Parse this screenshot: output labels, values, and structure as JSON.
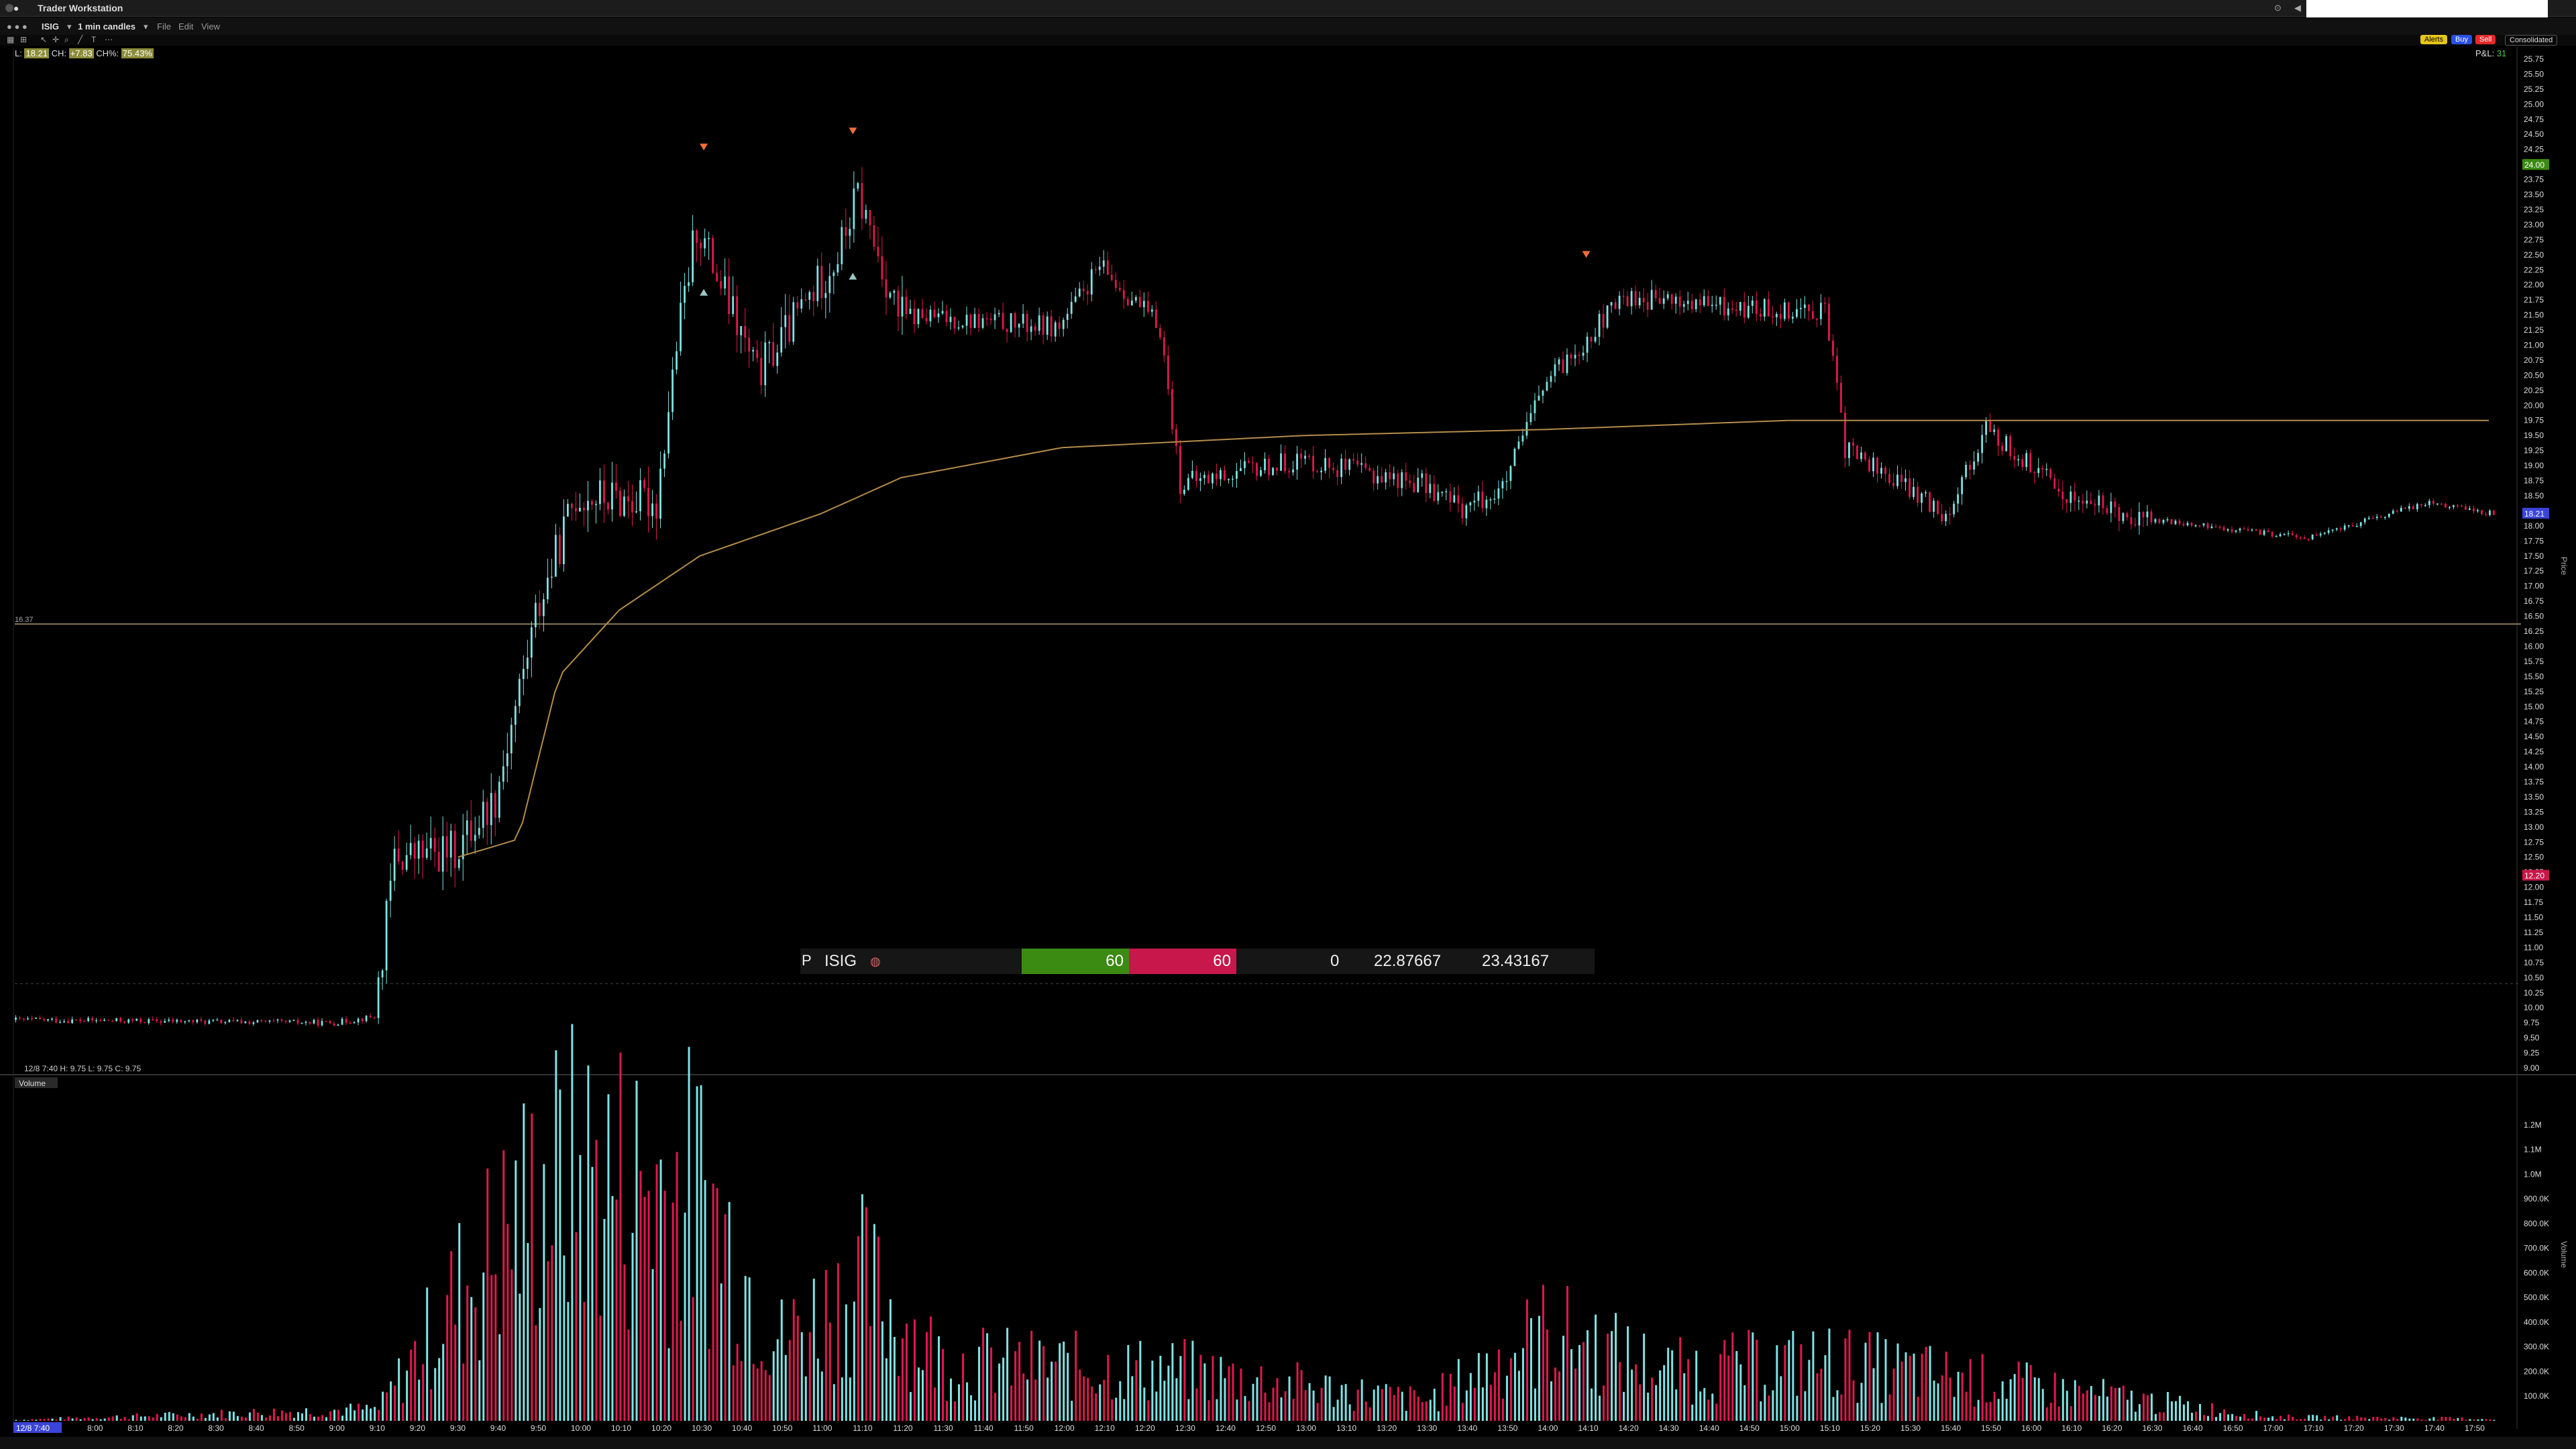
{
  "app": {
    "title": "Trader Workstation"
  },
  "toolbar": {
    "symbol": "ISIG",
    "timeframe": "1 min candles",
    "menu": [
      "File",
      "Edit",
      "View"
    ]
  },
  "order_buttons": [
    {
      "label": "Alerts",
      "color": "#e6c619"
    },
    {
      "label": "Buy",
      "color": "#2850e6"
    },
    {
      "label": "Sell",
      "color": "#e62828"
    },
    {
      "label": "Consolidated",
      "color": "#777777"
    }
  ],
  "infoline": {
    "l_label": "L:",
    "last": "18.21",
    "ch_label": "CH:",
    "change": "+7.83",
    "chg_label": "CH%:",
    "change_pct": "75.43%"
  },
  "pnl": {
    "label": "P&L:",
    "value": "31"
  },
  "price_axis_labels": [
    "25.75",
    "25.50",
    "25.25",
    "25.00",
    "24.75",
    "24.50",
    "24.25",
    "24.00",
    "23.75",
    "23.50",
    "23.25",
    "23.00",
    "22.75",
    "22.50",
    "22.25",
    "22.00",
    "21.75",
    "21.50",
    "21.25",
    "21.00",
    "20.75",
    "20.50",
    "20.25",
    "20.00",
    "19.75",
    "19.50",
    "19.25",
    "19.00",
    "18.75",
    "18.50",
    "18.25",
    "18.00",
    "17.75",
    "17.50",
    "17.25",
    "17.00",
    "16.75",
    "16.50",
    "16.25",
    "16.00",
    "15.75",
    "15.50",
    "15.25",
    "15.00",
    "14.75",
    "14.50",
    "14.25",
    "14.00",
    "13.75",
    "13.50",
    "13.25",
    "13.00",
    "12.75",
    "12.50",
    "12.25",
    "12.00",
    "11.75",
    "11.50",
    "11.25",
    "11.00",
    "10.75",
    "10.50",
    "10.25",
    "10.00",
    "9.75",
    "9.50",
    "9.25",
    "9.00"
  ],
  "price_tags": {
    "ask": "24.00",
    "last": "18.21",
    "bid": "12.20"
  },
  "hline_label": "16.37",
  "axis_side_label": "Price",
  "ohlc_line": "12/8 7:40   H: 9.75   L: 9.75   C: 9.75",
  "volume": {
    "title": "Volume",
    "axis_labels": [
      "1.2M",
      "1.1M",
      "1.0M",
      "900.0K",
      "800.0K",
      "700.0K",
      "600.0K",
      "500.0K",
      "400.0K",
      "300.0K",
      "200.0K",
      "100.0K"
    ],
    "side_label": "Volume"
  },
  "time_axis": {
    "start_label": "12/8 7:40",
    "labels": [
      "8:00",
      "8:10",
      "8:20",
      "8:30",
      "8:40",
      "8:50",
      "9:00",
      "9:10",
      "9:20",
      "9:30",
      "9:40",
      "9:50",
      "10:00",
      "10:10",
      "10:20",
      "10:30",
      "10:40",
      "10:50",
      "11:00",
      "11:10",
      "11:20",
      "11:30",
      "11:40",
      "11:50",
      "12:00",
      "12:10",
      "12:20",
      "12:30",
      "12:40",
      "12:50",
      "13:00",
      "13:10",
      "13:20",
      "13:30",
      "13:40",
      "13:50",
      "14:00",
      "14:10",
      "14:20",
      "14:30",
      "14:40",
      "14:50",
      "15:00",
      "15:10",
      "15:20",
      "15:30",
      "15:40",
      "15:50",
      "16:00",
      "16:10",
      "16:20",
      "16:30",
      "16:40",
      "16:50",
      "17:00",
      "17:10",
      "17:20",
      "17:30",
      "17:40",
      "17:50"
    ]
  },
  "quote": {
    "prefix": "P",
    "symbol": "ISIG",
    "bid_size": "60",
    "ask_size": "60",
    "position": "0",
    "value1": "22.87667",
    "value2": "23.43167"
  },
  "chart_data": {
    "type": "candlestick",
    "timeframe": "1 min",
    "ylim": [
      9.0,
      25.75
    ],
    "colors": {
      "up": "#7fe3e3",
      "down": "#e0184e",
      "vwap": "#b48c4a"
    },
    "price_path_keypoints": [
      {
        "t": "7:40",
        "p": 9.8
      },
      {
        "t": "9:00",
        "p": 9.75
      },
      {
        "t": "9:10",
        "p": 9.85
      },
      {
        "t": "9:15",
        "p": 12.5
      },
      {
        "t": "9:30",
        "p": 12.6
      },
      {
        "t": "9:40",
        "p": 13.5
      },
      {
        "t": "9:50",
        "p": 16.5
      },
      {
        "t": "10:00",
        "p": 18.5
      },
      {
        "t": "10:20",
        "p": 18.4
      },
      {
        "t": "10:25",
        "p": 21.0
      },
      {
        "t": "10:30",
        "p": 23.0
      },
      {
        "t": "10:45",
        "p": 20.5
      },
      {
        "t": "11:05",
        "p": 22.5
      },
      {
        "t": "11:10",
        "p": 23.5
      },
      {
        "t": "11:20",
        "p": 21.5
      },
      {
        "t": "12:00",
        "p": 21.3
      },
      {
        "t": "12:10",
        "p": 22.3
      },
      {
        "t": "12:25",
        "p": 21.3
      },
      {
        "t": "12:30",
        "p": 18.7
      },
      {
        "t": "13:00",
        "p": 19.1
      },
      {
        "t": "13:30",
        "p": 18.7
      },
      {
        "t": "13:40",
        "p": 18.3
      },
      {
        "t": "13:50",
        "p": 18.6
      },
      {
        "t": "14:00",
        "p": 20.3
      },
      {
        "t": "14:20",
        "p": 21.8
      },
      {
        "t": "14:50",
        "p": 21.6
      },
      {
        "t": "15:10",
        "p": 21.6
      },
      {
        "t": "15:15",
        "p": 19.3
      },
      {
        "t": "15:40",
        "p": 18.2
      },
      {
        "t": "15:50",
        "p": 19.6
      },
      {
        "t": "16:10",
        "p": 18.5
      },
      {
        "t": "16:30",
        "p": 18.1
      },
      {
        "t": "17:10",
        "p": 17.8
      },
      {
        "t": "17:40",
        "p": 18.4
      },
      {
        "t": "17:55",
        "p": 18.21
      }
    ],
    "vwap_keypoints": [
      {
        "t": "9:30",
        "p": 12.5
      },
      {
        "t": "9:45",
        "p": 12.8
      },
      {
        "t": "9:55",
        "p": 15.5
      },
      {
        "t": "10:10",
        "p": 16.6
      },
      {
        "t": "10:30",
        "p": 17.5
      },
      {
        "t": "11:00",
        "p": 18.2
      },
      {
        "t": "11:20",
        "p": 18.8
      },
      {
        "t": "12:00",
        "p": 19.3
      },
      {
        "t": "13:00",
        "p": 19.5
      },
      {
        "t": "14:00",
        "p": 19.6
      },
      {
        "t": "15:00",
        "p": 19.75
      },
      {
        "t": "17:55",
        "p": 19.75
      }
    ],
    "volume_keypoints": [
      {
        "t": "7:40",
        "v": 5000
      },
      {
        "t": "9:10",
        "v": 60000
      },
      {
        "t": "9:30",
        "v": 650000
      },
      {
        "t": "9:50",
        "v": 1150000
      },
      {
        "t": "10:00",
        "v": 1250000
      },
      {
        "t": "10:30",
        "v": 1150000
      },
      {
        "t": "10:50",
        "v": 400000
      },
      {
        "t": "11:10",
        "v": 700000
      },
      {
        "t": "11:30",
        "v": 300000
      },
      {
        "t": "12:30",
        "v": 250000
      },
      {
        "t": "13:30",
        "v": 100000
      },
      {
        "t": "14:00",
        "v": 450000
      },
      {
        "t": "14:30",
        "v": 250000
      },
      {
        "t": "15:10",
        "v": 300000
      },
      {
        "t": "16:10",
        "v": 150000
      },
      {
        "t": "17:00",
        "v": 20000
      },
      {
        "t": "17:55",
        "v": 10000
      }
    ],
    "horizontal_line": 16.37,
    "markers": [
      {
        "t": "10:31",
        "type": "sell"
      },
      {
        "t": "11:08",
        "type": "sell"
      },
      {
        "t": "11:08",
        "type": "buy"
      },
      {
        "t": "10:31",
        "type": "buy"
      },
      {
        "t": "14:10",
        "type": "sell"
      }
    ]
  }
}
